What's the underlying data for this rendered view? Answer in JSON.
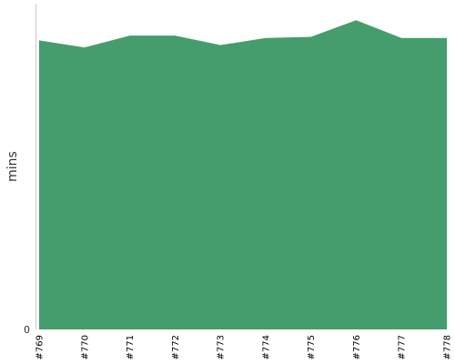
{
  "chart_data": {
    "type": "area",
    "categories": [
      "#769",
      "#770",
      "#771",
      "#772",
      "#773",
      "#774",
      "#775",
      "#776",
      "#777",
      "#778"
    ],
    "series": [
      {
        "values": [
          24.4,
          23.8,
          24.8,
          24.8,
          24.0,
          24.6,
          24.7,
          26.1,
          24.6,
          24.6
        ]
      }
    ],
    "ylabel": "mins",
    "y_tick_labels": [
      {
        "value": 0,
        "label": "0"
      }
    ],
    "ylim": [
      0,
      27.5
    ],
    "grid": false,
    "colors": {
      "fill": "#459d6e",
      "axis": "#cccccc"
    }
  }
}
